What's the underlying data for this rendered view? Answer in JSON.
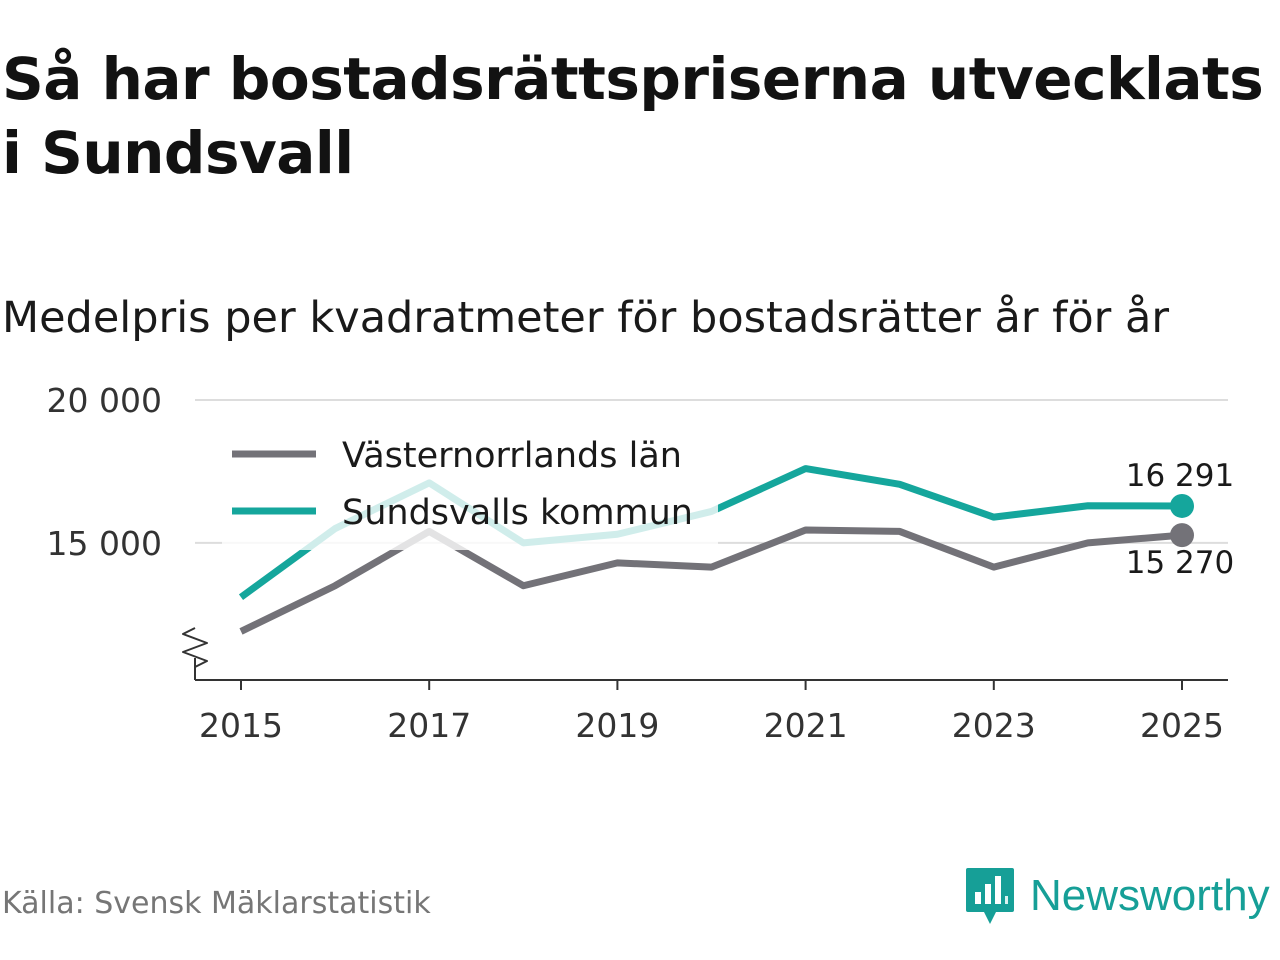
{
  "title": "Så har bostadsrättspriserna utvecklats i Sundsvall",
  "subtitle": "Medelpris per kvadratmeter för bostadsrätter år för år",
  "source": "Källa: Svensk Mäklarstatistik",
  "brand": "Newsworthy",
  "colors": {
    "region": "#737278",
    "municipality": "#15a69c",
    "grid": "#dddddd",
    "axis": "#333333",
    "brand": "#169f97"
  },
  "chart_data": {
    "type": "line",
    "title": "Medelpris per kvadratmeter för bostadsrätter år för år",
    "x": [
      2015,
      2016,
      2017,
      2018,
      2019,
      2020,
      2021,
      2022,
      2023,
      2024,
      2025
    ],
    "x_ticks": [
      "2015",
      "2017",
      "2019",
      "2021",
      "2023",
      "2025"
    ],
    "y_ticks": [
      15000,
      20000
    ],
    "y_tick_labels": [
      "15 000",
      "20 000"
    ],
    "ylim": [
      10200,
      20000
    ],
    "axis_break": true,
    "grid": true,
    "legend_position": "top-left",
    "series": [
      {
        "name": "Västernorrlands län",
        "color": "#737278",
        "values": [
          11900,
          13500,
          15400,
          13500,
          14300,
          14150,
          15450,
          15400,
          14150,
          15000,
          15270
        ],
        "end_label": "15 270"
      },
      {
        "name": "Sundsvalls kommun",
        "color": "#15a69c",
        "values": [
          13100,
          15500,
          17100,
          15000,
          15300,
          16100,
          17600,
          17050,
          15900,
          16300,
          16291
        ],
        "end_label": "16 291"
      }
    ]
  }
}
